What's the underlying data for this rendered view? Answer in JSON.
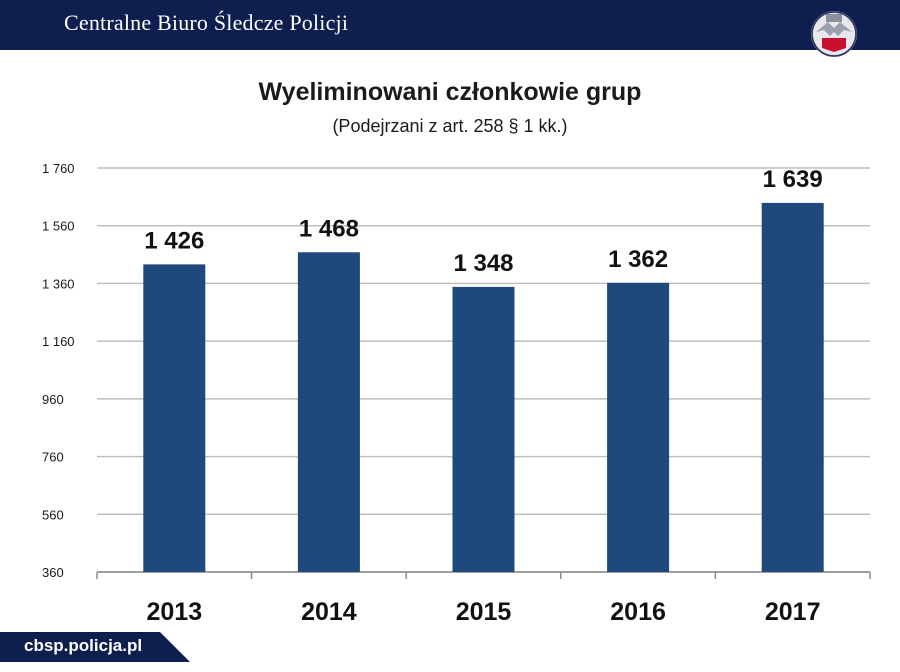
{
  "header": {
    "title": "Centralne Biuro Śledcze Policji",
    "logo_icon": "police-eagle-emblem-icon"
  },
  "footer": {
    "site": "cbsp.policja.pl"
  },
  "colors": {
    "header_bg": "#0e1f4f",
    "bar": "#1f497d",
    "grid": "#bfbfbf"
  },
  "chart_data": {
    "type": "bar",
    "title": "Wyeliminowani członkowie grup",
    "subtitle": "(Podejrzani  z art. 258 § 1 kk.)",
    "categories": [
      "2013",
      "2014",
      "2015",
      "2016",
      "2017"
    ],
    "values": [
      1426,
      1468,
      1348,
      1362,
      1639
    ],
    "value_labels": [
      "1 426",
      "1 468",
      "1 348",
      "1 362",
      "1 639"
    ],
    "ylim": [
      360,
      1760
    ],
    "y_ticks": [
      360,
      560,
      760,
      960,
      1160,
      1360,
      1560,
      1760
    ],
    "y_tick_labels": [
      "360",
      "560",
      "760",
      "960",
      "1 160",
      "1 360",
      "1 560",
      "1 760"
    ],
    "xlabel": "",
    "ylabel": "",
    "grid": true,
    "legend": "none"
  }
}
